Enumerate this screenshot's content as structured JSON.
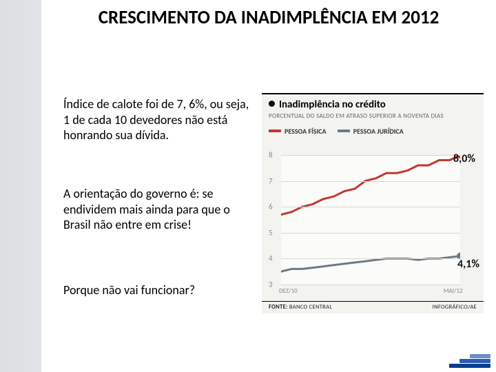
{
  "slide": {
    "title": "CRESCIMENTO DA INADIMPLÊNCIA EM 2012",
    "title_fontsize": 27,
    "title_color": "#000000",
    "paragraphs": [
      "Índice de calote foi de 7, 6%, ou seja, 1 de cada 10 devedores não está honrando sua dívida.",
      "A orientação do governo é: se endividem mais ainda para que o Brasil não entre em crise!",
      "Porque não vai funcionar?"
    ],
    "paragraph_fontsize": 18,
    "background_color": "#ffffff"
  },
  "chart": {
    "type": "line",
    "title": "Inadimplência no crédito",
    "subtitle": "PORCENTUAL DO SALDO EM ATRASO SUPERIOR A NOVENTA DIAS",
    "background_color": "#f3f3f0",
    "plot_background": "#fbfbf9",
    "grid_color": "#d8d8d0",
    "title_fontsize": 15,
    "subtitle_fontsize": 9,
    "ylabel_fontsize": 11,
    "ylim": [
      3,
      8
    ],
    "yticks": [
      3,
      4,
      5,
      6,
      7,
      8
    ],
    "xlabels": [
      "DEZ/10",
      "MAI/12"
    ],
    "line_width": 3,
    "marker_radius": 5,
    "legend": [
      {
        "label": "PESSOA FÍSICA",
        "color": "#c1372f"
      },
      {
        "label": "PESSOA JURÍDICA",
        "color": "#6d7a86"
      }
    ],
    "series": [
      {
        "name": "PESSOA FÍSICA",
        "color": "#c1372f",
        "callout": "8,0%",
        "values": [
          5.7,
          5.8,
          6.0,
          6.1,
          6.3,
          6.4,
          6.6,
          6.7,
          7.0,
          7.1,
          7.3,
          7.3,
          7.4,
          7.6,
          7.6,
          7.8,
          7.8,
          8.0
        ]
      },
      {
        "name": "PESSOA JURÍDICA",
        "color": "#6d7a86",
        "callout": "4,1%",
        "values": [
          3.5,
          3.6,
          3.6,
          3.65,
          3.7,
          3.75,
          3.8,
          3.85,
          3.9,
          3.95,
          4.0,
          4.0,
          4.0,
          3.95,
          4.0,
          4.0,
          4.05,
          4.1
        ]
      }
    ],
    "source_left": "FONTE: BANCO CENTRAL",
    "source_right": "INFOGRÁFICO/AE"
  },
  "corner_accent": {
    "colors": [
      "#0b3d91",
      "#2a5db0",
      "#6a8fd0"
    ],
    "widths": [
      60,
      45,
      30
    ]
  }
}
